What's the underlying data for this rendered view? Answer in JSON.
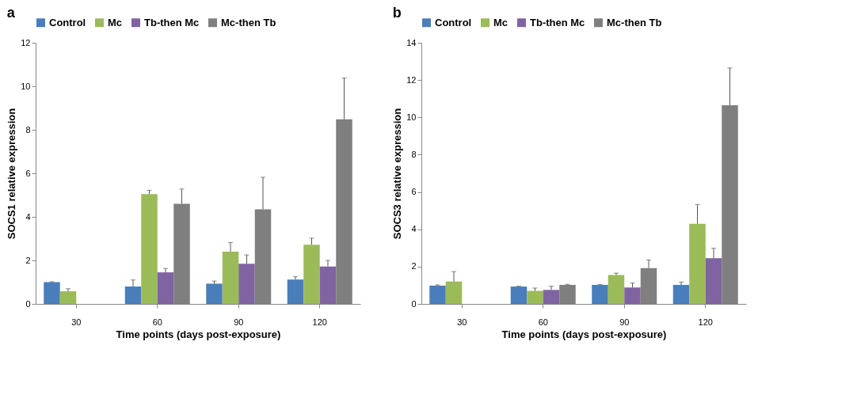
{
  "chart_data": [
    {
      "type": "bar",
      "title": "a",
      "xlabel": "Time points  (days post-exposure)",
      "ylabel": "SOCS1 relative expression",
      "categories": [
        "30",
        "60",
        "90",
        "120"
      ],
      "ylim": [
        0,
        12
      ],
      "yticks": [
        0,
        2,
        4,
        6,
        8,
        10,
        12
      ],
      "grid": false,
      "legend": "top",
      "series": [
        {
          "name": "Control",
          "color": "#4a7ebb",
          "values": [
            1.0,
            0.8,
            0.93,
            1.12
          ],
          "errors": [
            [
              1.0,
              1.02
            ],
            [
              0.8,
              1.1
            ],
            [
              0.93,
              1.05
            ],
            [
              1.12,
              1.25
            ]
          ]
        },
        {
          "name": "Mc",
          "color": "#9bbb59",
          "values": [
            0.58,
            5.05,
            2.4,
            2.72
          ],
          "errors": [
            [
              0.58,
              0.7
            ],
            [
              5.05,
              5.22
            ],
            [
              2.4,
              2.82
            ],
            [
              2.72,
              3.02
            ]
          ]
        },
        {
          "name": "Tb-then Mc",
          "color": "#8064a2",
          "values": [
            null,
            1.45,
            1.85,
            1.72
          ],
          "errors": [
            null,
            [
              1.45,
              1.63
            ],
            [
              1.85,
              2.25
            ],
            [
              1.72,
              2.0
            ]
          ]
        },
        {
          "name": "Mc-then Tb",
          "color": "#7f7f7f",
          "values": [
            null,
            4.6,
            4.35,
            8.48
          ],
          "errors": [
            null,
            [
              4.6,
              5.28
            ],
            [
              4.35,
              5.82
            ],
            [
              8.48,
              10.38
            ]
          ]
        }
      ]
    },
    {
      "type": "bar",
      "title": "b",
      "xlabel": "Time points  (days post-exposure)",
      "ylabel": "SOCS3 relative expression",
      "categories": [
        "30",
        "60",
        "90",
        "120"
      ],
      "ylim": [
        0,
        14
      ],
      "yticks": [
        0,
        2,
        4,
        6,
        8,
        10,
        12,
        14
      ],
      "grid": false,
      "legend": "top",
      "series": [
        {
          "name": "Control",
          "color": "#4a7ebb",
          "values": [
            0.98,
            0.93,
            1.02,
            1.02
          ],
          "errors": [
            [
              0.98,
              1.02
            ],
            [
              0.93,
              0.95
            ],
            [
              1.02,
              1.05
            ],
            [
              1.02,
              1.17
            ]
          ]
        },
        {
          "name": "Mc",
          "color": "#9bbb59",
          "values": [
            1.2,
            0.7,
            1.55,
            4.3
          ],
          "errors": [
            [
              1.2,
              1.73
            ],
            [
              0.7,
              0.85
            ],
            [
              1.55,
              1.65
            ],
            [
              4.3,
              5.33
            ]
          ]
        },
        {
          "name": "Tb-then Mc",
          "color": "#8064a2",
          "values": [
            null,
            0.75,
            0.88,
            2.45
          ],
          "errors": [
            null,
            [
              0.75,
              0.95
            ],
            [
              0.88,
              1.12
            ],
            [
              2.45,
              2.98
            ]
          ]
        },
        {
          "name": "Mc-then Tb",
          "color": "#7f7f7f",
          "values": [
            null,
            1.02,
            1.92,
            10.65
          ],
          "errors": [
            null,
            [
              1.02,
              1.05
            ],
            [
              1.92,
              2.35
            ],
            [
              10.65,
              12.65
            ]
          ]
        }
      ]
    }
  ]
}
